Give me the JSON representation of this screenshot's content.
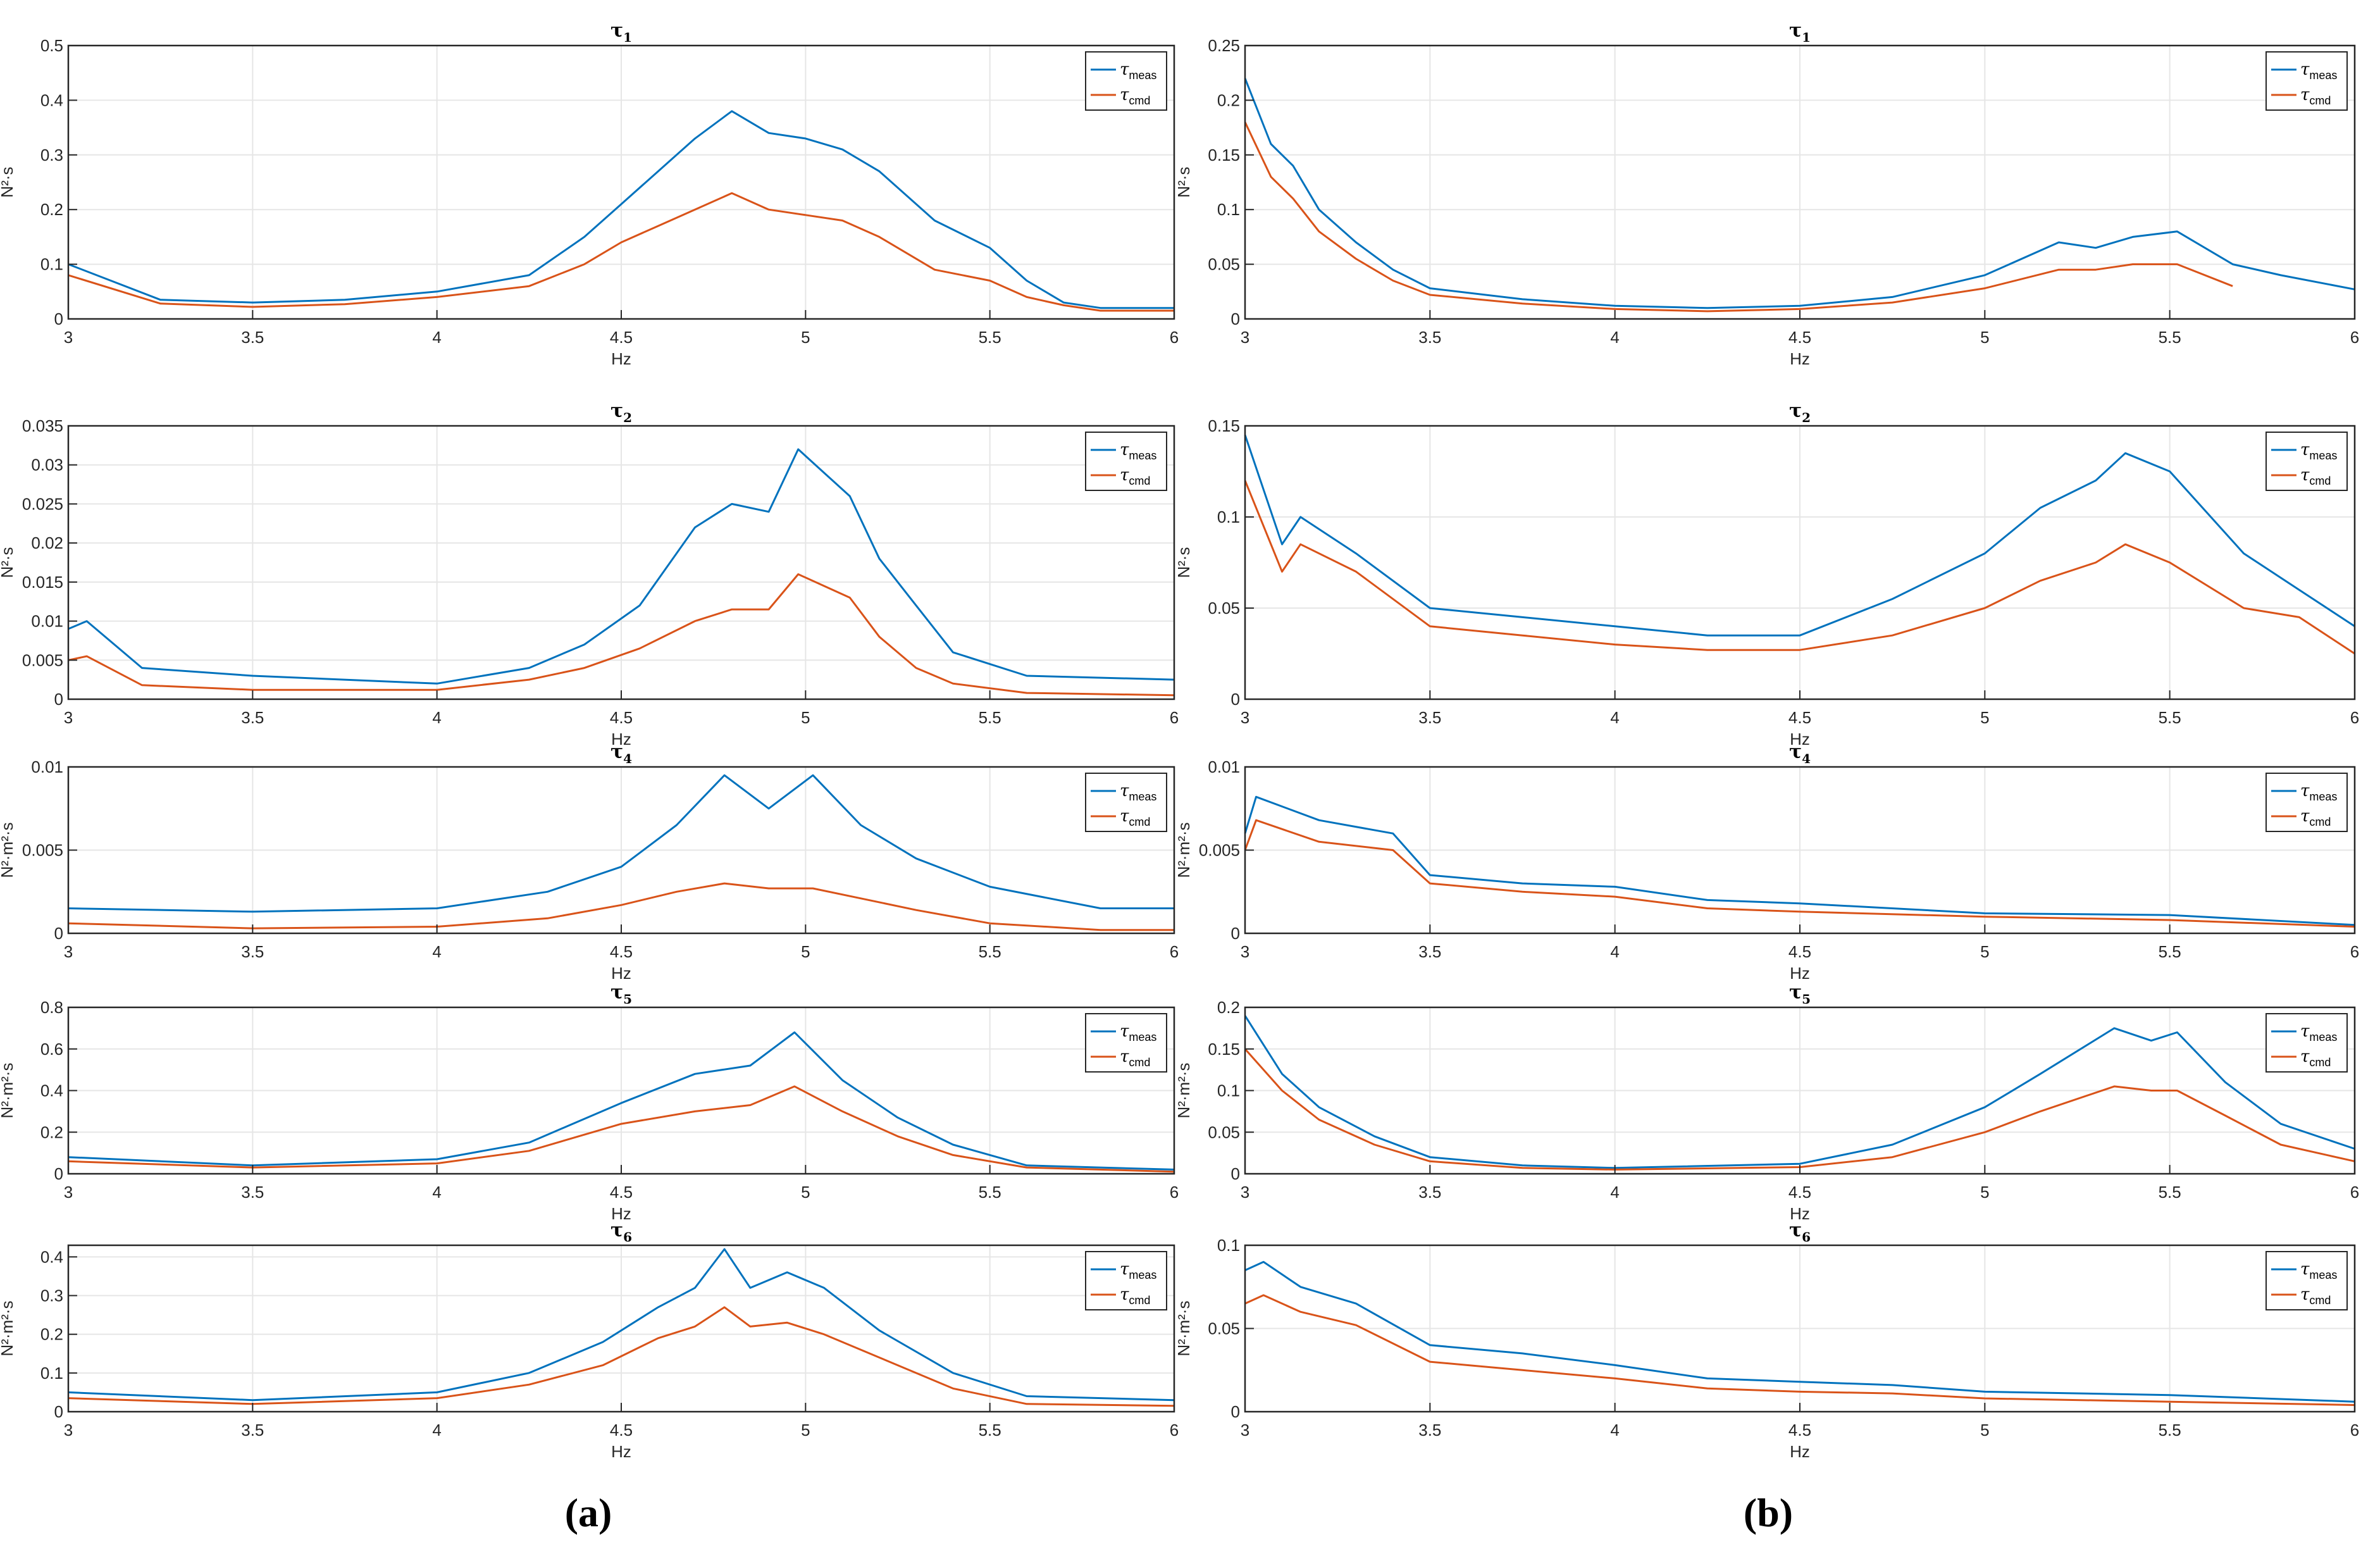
{
  "figure": {
    "captions": [
      "(a)",
      "(b)"
    ],
    "legend_symbol": "τ",
    "legend_subs": [
      "meas",
      "cmd"
    ],
    "colors": {
      "meas": "#0072BD",
      "cmd": "#D95319",
      "grid": "#e6e6e6",
      "axis": "#262626"
    }
  },
  "chart_data": [
    {
      "type": "line",
      "panel": "a",
      "title_symbol": "τ",
      "title_sub": "1",
      "xlabel": "Hz",
      "ylabel": "N²·s",
      "xlim": [
        3,
        6
      ],
      "ylim": [
        0,
        0.5
      ],
      "xticks": [
        "3",
        "3.5",
        "4",
        "4.5",
        "5",
        "5.5",
        "6"
      ],
      "yticks": [
        "0",
        "0.1",
        "0.2",
        "0.3",
        "0.4",
        "0.5"
      ],
      "legend": "top-right",
      "grid": true,
      "x": [
        3.0,
        3.25,
        3.5,
        3.75,
        4.0,
        4.25,
        4.4,
        4.5,
        4.6,
        4.7,
        4.8,
        4.9,
        5.0,
        5.1,
        5.2,
        5.35,
        5.5,
        5.6,
        5.7,
        5.8,
        6.0
      ],
      "series": [
        {
          "name": "meas",
          "values": [
            0.1,
            0.035,
            0.03,
            0.035,
            0.05,
            0.08,
            0.15,
            0.21,
            0.27,
            0.33,
            0.38,
            0.34,
            0.33,
            0.31,
            0.27,
            0.18,
            0.13,
            0.07,
            0.03,
            0.02,
            0.02
          ]
        },
        {
          "name": "cmd",
          "values": [
            0.08,
            0.028,
            0.022,
            0.027,
            0.04,
            0.06,
            0.1,
            0.14,
            0.17,
            0.2,
            0.23,
            0.2,
            0.19,
            0.18,
            0.15,
            0.09,
            0.07,
            0.04,
            0.025,
            0.015,
            0.015
          ]
        }
      ]
    },
    {
      "type": "line",
      "panel": "a",
      "title_symbol": "τ",
      "title_sub": "2",
      "xlabel": "Hz",
      "ylabel": "N²·s",
      "xlim": [
        3,
        6
      ],
      "ylim": [
        0,
        0.035
      ],
      "xticks": [
        "3",
        "3.5",
        "4",
        "4.5",
        "5",
        "5.5",
        "6"
      ],
      "yticks": [
        "0",
        "0.005",
        "0.01",
        "0.015",
        "0.02",
        "0.025",
        "0.03",
        "0.035"
      ],
      "legend": "top-right",
      "grid": true,
      "x": [
        3.0,
        3.05,
        3.2,
        3.5,
        4.0,
        4.25,
        4.4,
        4.55,
        4.7,
        4.8,
        4.9,
        4.98,
        5.05,
        5.12,
        5.2,
        5.3,
        5.4,
        5.6,
        6.0
      ],
      "series": [
        {
          "name": "meas",
          "values": [
            0.009,
            0.01,
            0.004,
            0.003,
            0.002,
            0.004,
            0.007,
            0.012,
            0.022,
            0.025,
            0.024,
            0.032,
            0.029,
            0.026,
            0.018,
            0.012,
            0.006,
            0.003,
            0.0025
          ]
        },
        {
          "name": "cmd",
          "values": [
            0.005,
            0.0055,
            0.0018,
            0.0012,
            0.0012,
            0.0025,
            0.004,
            0.0065,
            0.01,
            0.0115,
            0.0115,
            0.016,
            0.0145,
            0.013,
            0.008,
            0.004,
            0.002,
            0.0008,
            0.0005
          ]
        }
      ]
    },
    {
      "type": "line",
      "panel": "a",
      "title_symbol": "τ",
      "title_sub": "4",
      "xlabel": "Hz",
      "ylabel": "N²·m²·s",
      "xlim": [
        3,
        6
      ],
      "ylim": [
        0,
        0.01
      ],
      "xticks": [
        "3",
        "3.5",
        "4",
        "4.5",
        "5",
        "5.5",
        "6"
      ],
      "yticks": [
        "0",
        "0.005",
        "0.01"
      ],
      "legend": "top-right",
      "grid": true,
      "x": [
        3.0,
        3.5,
        4.0,
        4.3,
        4.5,
        4.65,
        4.78,
        4.9,
        5.02,
        5.15,
        5.3,
        5.5,
        5.8,
        6.0
      ],
      "series": [
        {
          "name": "meas",
          "values": [
            0.0015,
            0.0013,
            0.0015,
            0.0025,
            0.004,
            0.0065,
            0.0095,
            0.0075,
            0.0095,
            0.0065,
            0.0045,
            0.0028,
            0.0015,
            0.0015
          ]
        },
        {
          "name": "cmd",
          "values": [
            0.0006,
            0.0003,
            0.0004,
            0.0009,
            0.0017,
            0.0025,
            0.003,
            0.0027,
            0.0027,
            0.0021,
            0.0014,
            0.0006,
            0.0002,
            0.0002
          ]
        }
      ]
    },
    {
      "type": "line",
      "panel": "a",
      "title_symbol": "τ",
      "title_sub": "5",
      "xlabel": "Hz",
      "ylabel": "N²·m²·s",
      "xlim": [
        3,
        6
      ],
      "ylim": [
        0,
        0.8
      ],
      "xticks": [
        "3",
        "3.5",
        "4",
        "4.5",
        "5",
        "5.5",
        "6"
      ],
      "yticks": [
        "0",
        "0.2",
        "0.4",
        "0.6",
        "0.8"
      ],
      "legend": "top-right",
      "grid": true,
      "x": [
        3.0,
        3.5,
        4.0,
        4.25,
        4.5,
        4.7,
        4.85,
        4.97,
        5.1,
        5.25,
        5.4,
        5.6,
        6.0
      ],
      "series": [
        {
          "name": "meas",
          "values": [
            0.08,
            0.04,
            0.07,
            0.15,
            0.34,
            0.48,
            0.52,
            0.68,
            0.45,
            0.27,
            0.14,
            0.04,
            0.02
          ]
        },
        {
          "name": "cmd",
          "values": [
            0.06,
            0.03,
            0.05,
            0.11,
            0.24,
            0.3,
            0.33,
            0.42,
            0.3,
            0.18,
            0.09,
            0.03,
            0.01
          ]
        }
      ]
    },
    {
      "type": "line",
      "panel": "a",
      "title_symbol": "τ",
      "title_sub": "6",
      "xlabel": "Hz",
      "ylabel": "N²·m²·s",
      "xlim": [
        3,
        6
      ],
      "ylim": [
        0,
        0.43
      ],
      "xticks": [
        "3",
        "3.5",
        "4",
        "4.5",
        "5",
        "5.5",
        "6"
      ],
      "yticks": [
        "0",
        "0.1",
        "0.2",
        "0.3",
        "0.4"
      ],
      "legend": "top-right",
      "grid": true,
      "x": [
        3.0,
        3.5,
        4.0,
        4.25,
        4.45,
        4.6,
        4.7,
        4.78,
        4.85,
        4.95,
        5.05,
        5.2,
        5.4,
        5.6,
        6.0
      ],
      "series": [
        {
          "name": "meas",
          "values": [
            0.05,
            0.03,
            0.05,
            0.1,
            0.18,
            0.27,
            0.32,
            0.42,
            0.32,
            0.36,
            0.32,
            0.21,
            0.1,
            0.04,
            0.03
          ]
        },
        {
          "name": "cmd",
          "values": [
            0.035,
            0.02,
            0.035,
            0.07,
            0.12,
            0.19,
            0.22,
            0.27,
            0.22,
            0.23,
            0.2,
            0.14,
            0.06,
            0.02,
            0.015
          ]
        }
      ]
    },
    {
      "type": "line",
      "panel": "b",
      "title_symbol": "τ",
      "title_sub": "1",
      "xlabel": "Hz",
      "ylabel": "N²·s",
      "xlim": [
        3,
        6
      ],
      "ylim": [
        0,
        0.25
      ],
      "xticks": [
        "3",
        "3.5",
        "4",
        "4.5",
        "5",
        "5.5",
        "6"
      ],
      "yticks": [
        "0",
        "0.05",
        "0.1",
        "0.15",
        "0.2",
        "0.25"
      ],
      "legend": "top-right",
      "grid": true,
      "x": [
        3.0,
        3.07,
        3.13,
        3.2,
        3.3,
        3.4,
        3.5,
        3.75,
        4.0,
        4.25,
        4.5,
        4.75,
        5.0,
        5.2,
        5.3,
        5.4,
        5.52,
        5.67,
        5.8,
        6.0
      ],
      "series": [
        {
          "name": "meas",
          "values": [
            0.22,
            0.16,
            0.14,
            0.1,
            0.07,
            0.045,
            0.028,
            0.018,
            0.012,
            0.01,
            0.012,
            0.02,
            0.04,
            0.07,
            0.065,
            0.075,
            0.08,
            0.05,
            0.04,
            0.027
          ]
        },
        {
          "name": "cmd",
          "values": [
            0.18,
            0.13,
            0.11,
            0.08,
            0.055,
            0.035,
            0.022,
            0.014,
            0.009,
            0.007,
            0.009,
            0.015,
            0.028,
            0.045,
            0.045,
            0.05,
            0.05,
            0.03,
            null,
            null
          ]
        }
      ]
    },
    {
      "type": "line",
      "panel": "b",
      "title_symbol": "τ",
      "title_sub": "2",
      "xlabel": "Hz",
      "ylabel": "N²·s",
      "xlim": [
        3,
        6
      ],
      "ylim": [
        0,
        0.15
      ],
      "xticks": [
        "3",
        "3.5",
        "4",
        "4.5",
        "5",
        "5.5",
        "6"
      ],
      "yticks": [
        "0",
        "0.05",
        "0.1",
        "0.15"
      ],
      "legend": "top-right",
      "grid": true,
      "x": [
        3.0,
        3.1,
        3.15,
        3.3,
        3.5,
        3.75,
        4.0,
        4.25,
        4.5,
        4.75,
        5.0,
        5.15,
        5.3,
        5.38,
        5.5,
        5.7,
        5.85,
        6.0
      ],
      "series": [
        {
          "name": "meas",
          "values": [
            0.145,
            0.085,
            0.1,
            0.08,
            0.05,
            0.045,
            0.04,
            0.035,
            0.035,
            0.055,
            0.08,
            0.105,
            0.12,
            0.135,
            0.125,
            0.08,
            0.06,
            0.04
          ]
        },
        {
          "name": "cmd",
          "values": [
            0.12,
            0.07,
            0.085,
            0.07,
            0.04,
            0.035,
            0.03,
            0.027,
            0.027,
            0.035,
            0.05,
            0.065,
            0.075,
            0.085,
            0.075,
            0.05,
            0.045,
            0.025
          ]
        }
      ]
    },
    {
      "type": "line",
      "panel": "b",
      "title_symbol": "τ",
      "title_sub": "4",
      "xlabel": "Hz",
      "ylabel": "N²·m²·s",
      "xlim": [
        3,
        6
      ],
      "ylim": [
        0,
        0.01
      ],
      "xticks": [
        "3",
        "3.5",
        "4",
        "4.5",
        "5",
        "5.5",
        "6"
      ],
      "yticks": [
        "0",
        "0.005",
        "0.01"
      ],
      "legend": "top-right",
      "grid": true,
      "x": [
        3.0,
        3.03,
        3.2,
        3.4,
        3.5,
        3.75,
        4.0,
        4.25,
        4.5,
        5.0,
        5.5,
        6.0
      ],
      "series": [
        {
          "name": "meas",
          "values": [
            0.006,
            0.0082,
            0.0068,
            0.006,
            0.0035,
            0.003,
            0.0028,
            0.002,
            0.0018,
            0.0012,
            0.0011,
            0.0005
          ]
        },
        {
          "name": "cmd",
          "values": [
            0.005,
            0.0068,
            0.0055,
            0.005,
            0.003,
            0.0025,
            0.0022,
            0.0015,
            0.0013,
            0.001,
            0.0008,
            0.0004
          ]
        }
      ]
    },
    {
      "type": "line",
      "panel": "b",
      "title_symbol": "τ",
      "title_sub": "5",
      "xlabel": "Hz",
      "ylabel": "N²·m²·s",
      "xlim": [
        3,
        6
      ],
      "ylim": [
        0,
        0.2
      ],
      "xticks": [
        "3",
        "3.5",
        "4",
        "4.5",
        "5",
        "5.5",
        "6"
      ],
      "yticks": [
        "0",
        "0.05",
        "0.1",
        "0.15",
        "0.2"
      ],
      "legend": "top-right",
      "grid": true,
      "x": [
        3.0,
        3.1,
        3.2,
        3.35,
        3.5,
        3.75,
        4.0,
        4.5,
        4.75,
        5.0,
        5.15,
        5.35,
        5.45,
        5.52,
        5.65,
        5.8,
        6.0
      ],
      "series": [
        {
          "name": "meas",
          "values": [
            0.19,
            0.12,
            0.08,
            0.045,
            0.02,
            0.01,
            0.007,
            0.012,
            0.035,
            0.08,
            0.12,
            0.175,
            0.16,
            0.17,
            0.11,
            0.06,
            0.03
          ]
        },
        {
          "name": "cmd",
          "values": [
            0.15,
            0.1,
            0.065,
            0.035,
            0.015,
            0.007,
            0.005,
            0.008,
            0.02,
            0.05,
            0.075,
            0.105,
            0.1,
            0.1,
            0.07,
            0.035,
            0.015
          ]
        }
      ]
    },
    {
      "type": "line",
      "panel": "b",
      "title_symbol": "τ",
      "title_sub": "6",
      "xlabel": "Hz",
      "ylabel": "N²·m²·s",
      "xlim": [
        3,
        6
      ],
      "ylim": [
        0,
        0.1
      ],
      "xticks": [
        "3",
        "3.5",
        "4",
        "4.5",
        "5",
        "5.5",
        "6"
      ],
      "yticks": [
        "0",
        "0.05",
        "0.1"
      ],
      "legend": "top-right",
      "grid": true,
      "x": [
        3.0,
        3.05,
        3.15,
        3.3,
        3.5,
        3.75,
        4.0,
        4.25,
        4.5,
        4.75,
        5.0,
        5.5,
        6.0
      ],
      "series": [
        {
          "name": "meas",
          "values": [
            0.085,
            0.09,
            0.075,
            0.065,
            0.04,
            0.035,
            0.028,
            0.02,
            0.018,
            0.016,
            0.012,
            0.01,
            0.006
          ]
        },
        {
          "name": "cmd",
          "values": [
            0.065,
            0.07,
            0.06,
            0.052,
            0.03,
            0.025,
            0.02,
            0.014,
            0.012,
            0.011,
            0.008,
            0.006,
            0.004
          ]
        }
      ]
    }
  ]
}
